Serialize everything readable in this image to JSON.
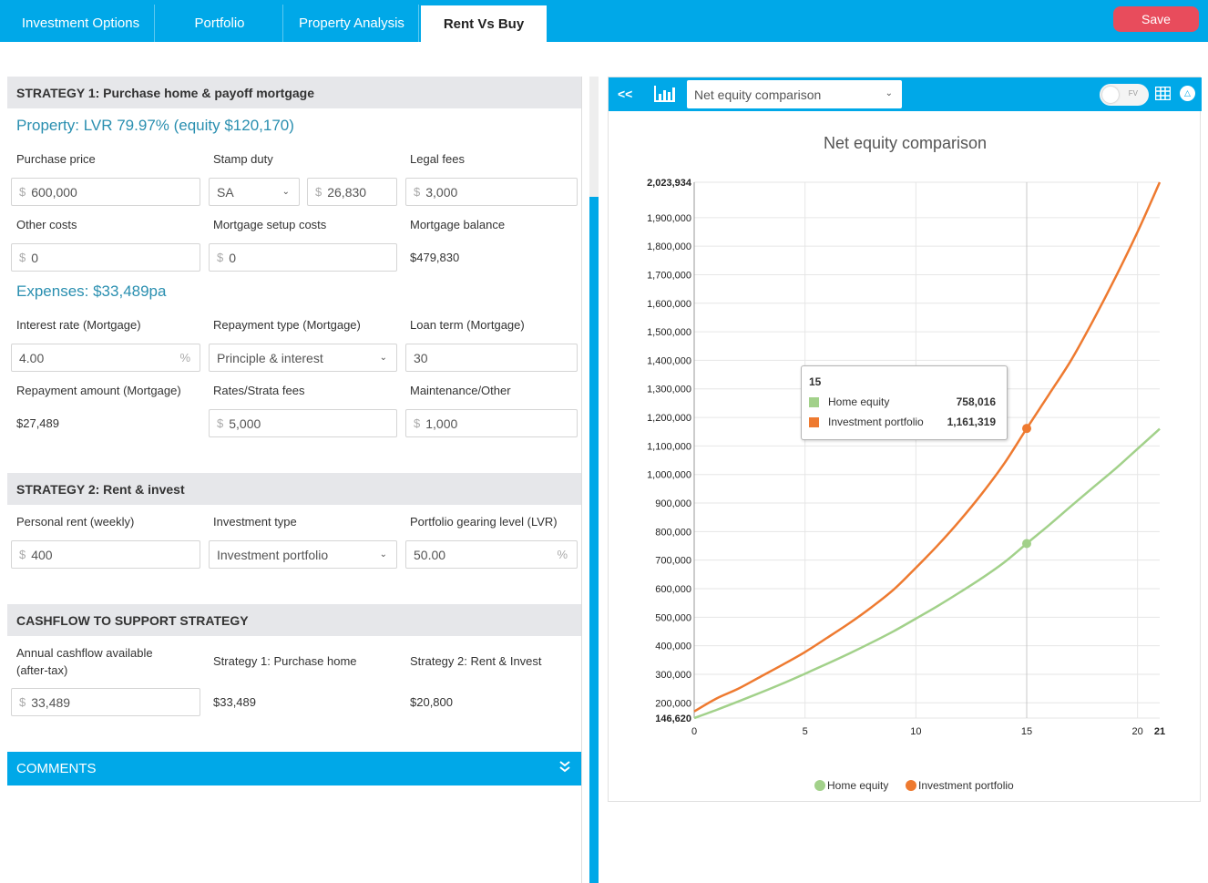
{
  "tabs": [
    {
      "label": "Investment Options"
    },
    {
      "label": "Portfolio"
    },
    {
      "label": "Property Analysis"
    },
    {
      "label": "Rent Vs Buy"
    }
  ],
  "save_label": "Save",
  "strategy1": {
    "title": "STRATEGY 1: Purchase home & payoff mortgage",
    "property_summary": "Property: LVR 79.97% (equity $120,170)",
    "purchase_price": {
      "label": "Purchase price",
      "value": "600,000"
    },
    "stamp_duty": {
      "label": "Stamp duty",
      "state": "SA",
      "value": "26,830"
    },
    "legal_fees": {
      "label": "Legal fees",
      "value": "3,000"
    },
    "other_costs": {
      "label": "Other costs",
      "value": "0"
    },
    "mortgage_setup": {
      "label": "Mortgage setup costs",
      "value": "0"
    },
    "mortgage_balance": {
      "label": "Mortgage balance",
      "value": "$479,830"
    },
    "expenses_summary": "Expenses: $33,489pa",
    "interest_rate": {
      "label": "Interest rate (Mortgage)",
      "value": "4.00"
    },
    "repayment_type": {
      "label": "Repayment type (Mortgage)",
      "value": "Principle & interest"
    },
    "loan_term": {
      "label": "Loan term (Mortgage)",
      "value": "30"
    },
    "repayment_amount": {
      "label": "Repayment amount (Mortgage)",
      "value": "$27,489"
    },
    "rates_fees": {
      "label": "Rates/Strata fees",
      "value": "5,000"
    },
    "maintenance": {
      "label": "Maintenance/Other",
      "value": "1,000"
    }
  },
  "strategy2": {
    "title": "STRATEGY 2: Rent & invest",
    "rent": {
      "label": "Personal rent (weekly)",
      "value": "400"
    },
    "investment_type": {
      "label": "Investment type",
      "value": "Investment portfolio"
    },
    "gearing": {
      "label": "Portfolio gearing level (LVR)",
      "value": "50.00"
    }
  },
  "cashflow": {
    "title": "CASHFLOW TO SUPPORT STRATEGY",
    "annual_label_1": "Annual cashflow available",
    "annual_label_2": "(after-tax)",
    "annual_value": "33,489",
    "s1_label": "Strategy 1: Purchase home",
    "s1_value": "$33,489",
    "s2_label": "Strategy 2: Rent & Invest",
    "s2_value": "$20,800"
  },
  "comments_label": "COMMENTS",
  "symbols": {
    "currency": "$",
    "percent": "%",
    "collapse": "<<",
    "fv": "FV"
  },
  "chart_panel": {
    "select_value": "Net equity comparison",
    "tooltip": {
      "header": "15",
      "rows": [
        {
          "label": "Home equity",
          "value": "758,016"
        },
        {
          "label": "Investment portfolio",
          "value": "1,161,319"
        }
      ]
    }
  },
  "colors": {
    "accent": "#00a8e8",
    "save": "#e84c5c",
    "home": "#a2d18a",
    "invest": "#ee7a30"
  },
  "chart_data": {
    "type": "line",
    "title": "Net equity comparison",
    "xlabel": "",
    "ylabel": "",
    "xlim": [
      0,
      21
    ],
    "ylim": [
      146620,
      2023934
    ],
    "x_ticks": [
      0,
      5,
      10,
      15,
      20,
      21
    ],
    "y_ticks": [
      146620,
      200000,
      300000,
      400000,
      500000,
      600000,
      700000,
      800000,
      900000,
      1000000,
      1100000,
      1200000,
      1300000,
      1400000,
      1500000,
      1600000,
      1700000,
      1800000,
      1900000,
      2023934
    ],
    "y_tick_labels": [
      "146,620",
      "200,000",
      "300,000",
      "400,000",
      "500,000",
      "600,000",
      "700,000",
      "800,000",
      "900,000",
      "1,000,000",
      "1,100,000",
      "1,200,000",
      "1,300,000",
      "1,400,000",
      "1,500,000",
      "1,600,000",
      "1,700,000",
      "1,800,000",
      "1,900,000",
      "2,023,934"
    ],
    "bold_ticks": [
      "146,620",
      "2,023,934",
      "21"
    ],
    "highlight_x": 15,
    "legend_position": "bottom",
    "grid": true,
    "x": [
      0,
      1,
      2,
      3,
      4,
      5,
      6,
      7,
      8,
      9,
      10,
      11,
      12,
      13,
      14,
      15,
      16,
      17,
      18,
      19,
      20,
      21
    ],
    "series": [
      {
        "name": "Home equity",
        "color": "#a2d18a",
        "values": [
          146620,
          175000,
          205000,
          236000,
          268000,
          302000,
          337000,
          373000,
          411000,
          451000,
          495000,
          540000,
          588000,
          638000,
          693000,
          758016,
          822000,
          889000,
          955000,
          1020000,
          1090000,
          1160000
        ]
      },
      {
        "name": "Investment portfolio",
        "color": "#ee7a30",
        "values": [
          170000,
          215000,
          250000,
          292000,
          334000,
          378000,
          428000,
          479000,
          535000,
          597000,
          673000,
          753000,
          840000,
          935000,
          1040000,
          1161319,
          1280000,
          1400000,
          1540000,
          1690000,
          1850000,
          2023934
        ]
      }
    ]
  }
}
